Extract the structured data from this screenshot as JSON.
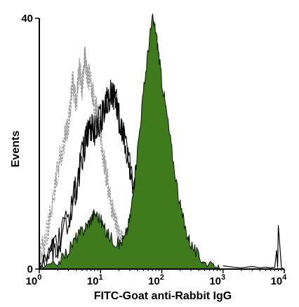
{
  "chart_data": {
    "type": "area",
    "xlabel": "FITC-Goat anti-Rabbit IgG",
    "ylabel": "Events",
    "xscale": "log",
    "xlim": [
      1,
      10000
    ],
    "ylim": [
      0,
      40
    ],
    "grid": false,
    "x_tick_labels": [
      {
        "value": 1,
        "base": "10",
        "exp": "0"
      },
      {
        "value": 10,
        "base": "10",
        "exp": "1"
      },
      {
        "value": 100,
        "base": "10",
        "exp": "2"
      },
      {
        "value": 1000,
        "base": "10",
        "exp": "3"
      },
      {
        "value": 10000,
        "base": "10",
        "exp": "4"
      }
    ],
    "y_tick_labels": [
      {
        "value": 0,
        "text": "0"
      },
      {
        "value": 40,
        "text": "40"
      }
    ],
    "series": [
      {
        "style": "gray-dashed",
        "color": "#9a9a9a",
        "x": [
          1,
          1.3,
          1.6,
          2,
          2.5,
          3,
          3.5,
          4,
          4.5,
          5,
          5.5,
          6,
          7,
          8,
          9,
          10,
          12,
          14,
          17,
          20,
          25,
          30,
          40,
          50,
          60,
          80,
          100
        ],
        "y": [
          2,
          5,
          10,
          16,
          20,
          23,
          30,
          26,
          32,
          29,
          34,
          31,
          30,
          26,
          25,
          21,
          16,
          12,
          8,
          5,
          3,
          2,
          1.5,
          1,
          0.6,
          0.3,
          0
        ]
      },
      {
        "style": "black-outline",
        "color": "#000000",
        "x": [
          1,
          1.5,
          2,
          3,
          4,
          5,
          6,
          7,
          8,
          10,
          12,
          15,
          18,
          20,
          25,
          30,
          40,
          50,
          60,
          80,
          100,
          150,
          200,
          300,
          500
        ],
        "y": [
          0.5,
          2,
          4,
          8,
          13,
          18,
          21,
          23,
          22,
          24,
          26,
          28,
          27,
          24,
          20,
          16,
          12,
          9,
          6,
          4,
          2.5,
          1.5,
          1,
          0.5,
          0
        ]
      },
      {
        "style": "green-filled",
        "color": "#3f7a1d",
        "x": [
          1,
          2,
          3,
          4,
          5,
          6,
          7,
          8,
          10,
          12,
          15,
          20,
          25,
          30,
          35,
          40,
          50,
          60,
          70,
          80,
          90,
          100,
          120,
          150,
          200,
          250,
          300,
          400,
          500,
          700,
          1000
        ],
        "y": [
          0,
          1,
          3,
          5,
          6,
          7,
          8,
          9,
          8,
          6,
          5,
          4,
          5,
          8,
          13,
          19,
          28,
          35,
          40,
          38,
          34,
          30,
          25,
          18,
          10,
          6,
          4,
          2,
          1,
          0.5,
          0
        ]
      },
      {
        "style": "black-baseline",
        "color": "#000000",
        "x": [
          1000,
          1500,
          2000,
          3000,
          4000,
          5000,
          6000,
          7000,
          7500,
          7800,
          8000,
          9000,
          10000
        ],
        "y": [
          0.5,
          0.3,
          0.2,
          0.4,
          0.2,
          0.3,
          0.2,
          0.3,
          3,
          0.2,
          7,
          0.2,
          0
        ]
      }
    ]
  }
}
